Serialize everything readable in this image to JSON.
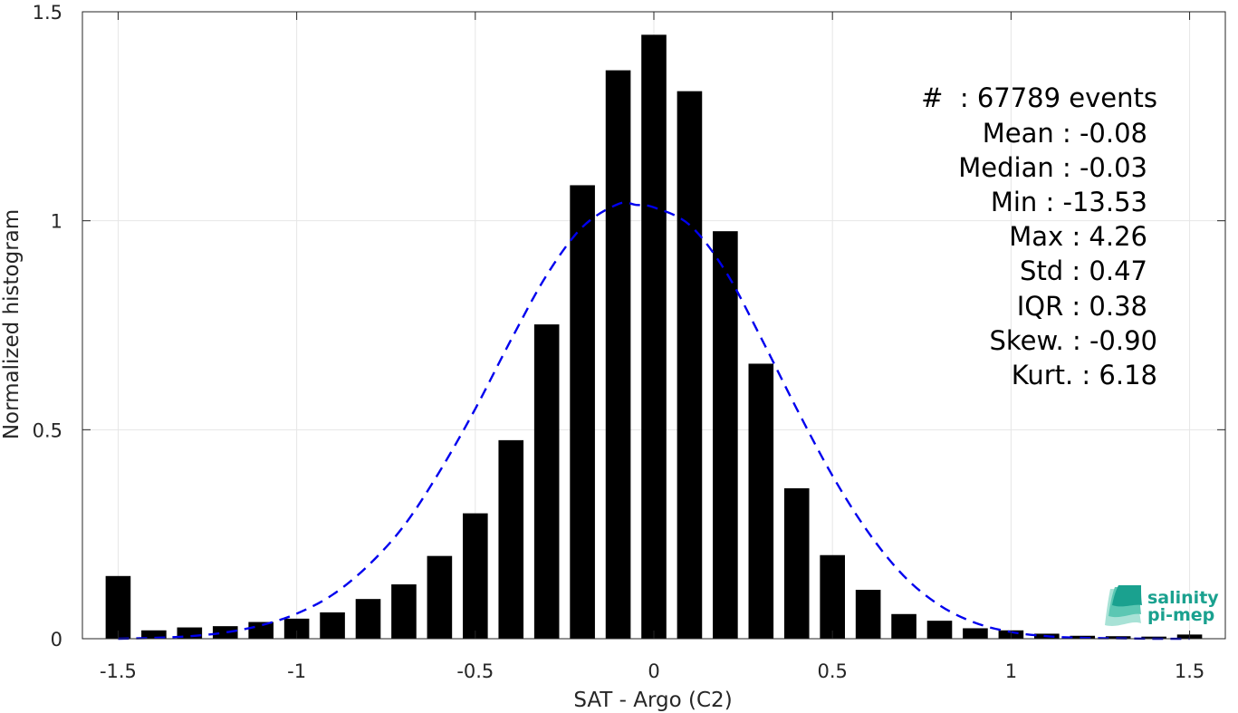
{
  "chart_data": {
    "type": "bar",
    "xlabel": "SAT - Argo (C2)",
    "ylabel": "Normalized histogram",
    "xlim": [
      -1.6,
      1.6
    ],
    "ylim": [
      0,
      1.5
    ],
    "grid": true,
    "x_ticks": [
      -1.5,
      -1,
      -0.5,
      0,
      0.5,
      1,
      1.5
    ],
    "x_tick_labels": [
      "-1.5",
      "-1",
      "-0.5",
      "0",
      "0.5",
      "1",
      "1.5"
    ],
    "y_ticks": [
      0,
      0.5,
      1,
      1.5
    ],
    "y_tick_labels": [
      "0",
      "0.5",
      "1",
      "1.5"
    ],
    "bar_color": "#000000",
    "series": [
      {
        "type": "bar",
        "x": [
          -1.5,
          -1.4,
          -1.3,
          -1.2,
          -1.1,
          -1.0,
          -0.9,
          -0.8,
          -0.7,
          -0.6,
          -0.5,
          -0.4,
          -0.3,
          -0.2,
          -0.1,
          0.0,
          0.1,
          0.2,
          0.3,
          0.4,
          0.5,
          0.6,
          0.7,
          0.8,
          0.9,
          1.0,
          1.1,
          1.2,
          1.3,
          1.4,
          1.5
        ],
        "values": [
          0.15,
          0.02,
          0.027,
          0.03,
          0.04,
          0.048,
          0.063,
          0.095,
          0.13,
          0.198,
          0.3,
          0.475,
          0.752,
          1.085,
          1.36,
          1.445,
          1.31,
          0.975,
          0.658,
          0.36,
          0.2,
          0.117,
          0.059,
          0.043,
          0.025,
          0.02,
          0.012,
          0.007,
          0.006,
          0.005,
          0.01
        ]
      },
      {
        "type": "line",
        "style": "dashed",
        "color": "#0000ee",
        "x": [
          -1.5,
          -1.4,
          -1.3,
          -1.2,
          -1.1,
          -1.0,
          -0.9,
          -0.8,
          -0.7,
          -0.6,
          -0.5,
          -0.4,
          -0.3,
          -0.2,
          -0.1,
          -0.05,
          0.0,
          0.1,
          0.2,
          0.3,
          0.4,
          0.5,
          0.6,
          0.7,
          0.8,
          0.9,
          1.0,
          1.1,
          1.2,
          1.3,
          1.4,
          1.5
        ],
        "values": [
          0.0,
          0.002,
          0.006,
          0.015,
          0.032,
          0.06,
          0.105,
          0.175,
          0.27,
          0.4,
          0.55,
          0.715,
          0.87,
          0.985,
          1.04,
          1.038,
          1.032,
          0.99,
          0.88,
          0.72,
          0.55,
          0.39,
          0.255,
          0.15,
          0.08,
          0.038,
          0.016,
          0.006,
          0.002,
          0.001,
          0.0,
          0.0
        ]
      }
    ]
  },
  "stats": {
    "events": "#  : 67789 events",
    "mean": "Mean : -0.08",
    "median": "Median : -0.03",
    "min": "Min : -13.53",
    "max": "Max : 4.26",
    "std": "Std : 0.47",
    "iqr": "IQR : 0.38",
    "skew": "Skew. : -0.90",
    "kurt": "Kurt. : 6.18"
  },
  "logo": {
    "line1": "salinity",
    "line2": "pi-mep"
  }
}
